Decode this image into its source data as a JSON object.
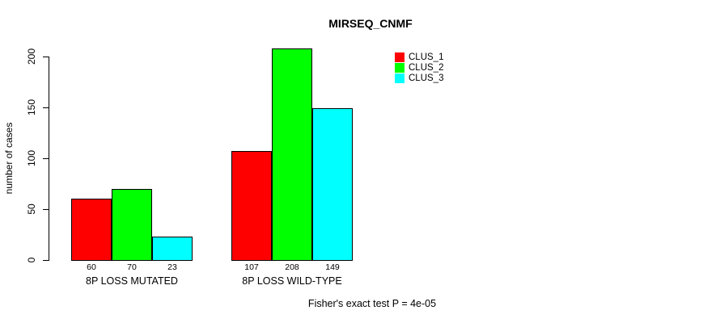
{
  "chart_data": {
    "type": "bar",
    "title": "MIRSEQ_CNMF",
    "ylabel": "number of cases",
    "xlabel": "",
    "ylim": [
      0,
      200
    ],
    "yticks": [
      0,
      50,
      100,
      150,
      200
    ],
    "categories": [
      "8P LOSS MUTATED",
      "8P LOSS WILD-TYPE"
    ],
    "series": [
      {
        "name": "CLUS_1",
        "color": "#FF0000",
        "values": [
          60,
          107
        ]
      },
      {
        "name": "CLUS_2",
        "color": "#00FF00",
        "values": [
          70,
          208
        ]
      },
      {
        "name": "CLUS_3",
        "color": "#00FFFF",
        "values": [
          23,
          149
        ]
      }
    ],
    "bar_value_labels": [
      [
        60,
        70,
        23
      ],
      [
        107,
        208,
        149
      ]
    ],
    "legend": {
      "position": "top-right-inside",
      "entries": [
        "CLUS_1",
        "CLUS_2",
        "CLUS_3"
      ]
    },
    "grid": false,
    "annotation": "Fisher's exact test P = 4e-05"
  },
  "colors": {
    "background": "#FFFFFF",
    "text": "#000000",
    "bar_border": "#000000",
    "clus_1": "#FF0000",
    "clus_2": "#00FF00",
    "clus_3": "#00FFFF"
  }
}
